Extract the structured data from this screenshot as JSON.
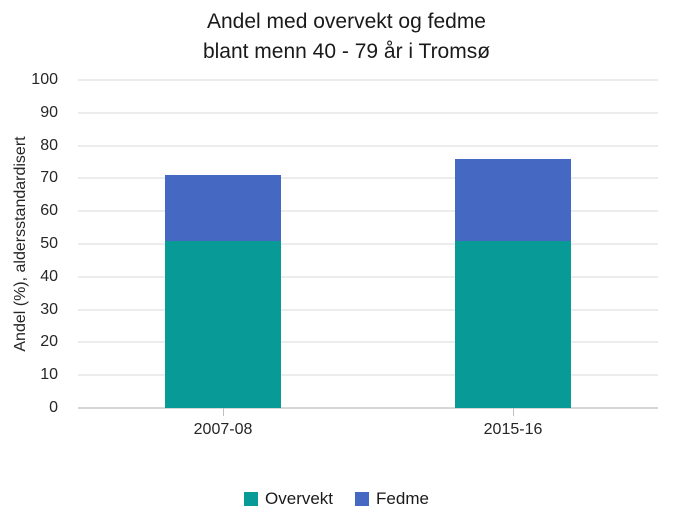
{
  "title": {
    "line1": "Andel med overvekt og fedme",
    "line2": "blant menn 40 - 79 år i Tromsø"
  },
  "chart_data": {
    "type": "bar",
    "stacked": true,
    "title": "Andel med overvekt og fedme blant menn 40 - 79 år i Tromsø",
    "categories": [
      "2007-08",
      "2015-16"
    ],
    "series": [
      {
        "name": "Overvekt",
        "values": [
          51,
          51
        ],
        "color": "#089a96"
      },
      {
        "name": "Fedme",
        "values": [
          20,
          25
        ],
        "color": "#4569c2"
      }
    ],
    "totals": [
      71,
      76
    ],
    "xlabel": "",
    "ylabel": "Andel (%), aldersstandardisert",
    "ylim": [
      0,
      100
    ],
    "yticks": [
      0,
      10,
      20,
      30,
      40,
      50,
      60,
      70,
      80,
      90,
      100
    ],
    "grid": true,
    "gridline_color": "#d9d9d9",
    "legend_position": "bottom"
  }
}
